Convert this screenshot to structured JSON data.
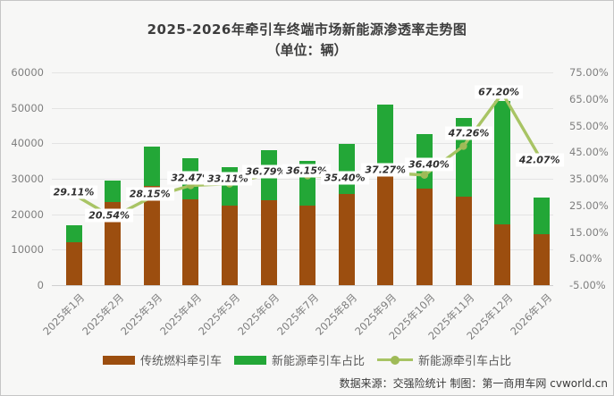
{
  "footer": {
    "text": "数据来源：交强险统计 制图：第一商用车网 cvworld.cn"
  },
  "colors": {
    "fuel_bar": "#9C4E0F",
    "ne_bar": "#23A737",
    "line": "#A8C464",
    "marker": "#9FBA57",
    "title_text": "#3D3D3D",
    "axis_text": "#7F7F7F",
    "label_text": "#2F2F2F",
    "gridline": "#E3E3E3",
    "legend_text": "#5B5B5B",
    "label_bg": "#FFFFFF"
  },
  "legend": {
    "items": [
      {
        "swatch": "bar-fuel",
        "label": "传统燃料牵引车"
      },
      {
        "swatch": "bar-ne",
        "label": "新能源牵引车占比"
      },
      {
        "swatch": "line",
        "label": "新能源牵引车占比"
      }
    ]
  },
  "chart_data": {
    "type": "combo: stacked bar + line",
    "title": "2025-2026年牵引车终端市场新能源渗透率走势图",
    "subtitle": "（单位：辆）",
    "categories": [
      "2025年1月",
      "2025年2月",
      "2025年3月",
      "2025年4月",
      "2025年5月",
      "2025年6月",
      "2025年7月",
      "2025年8月",
      "2025年9月",
      "2025年10月",
      "2025年11月",
      "2025年12月",
      "2026年1月"
    ],
    "series": [
      {
        "name": "传统燃料牵引车",
        "type": "bar",
        "stack": "total",
        "color": "#9C4E0F",
        "values": [
          12050,
          23440,
          28020,
          24110,
          22340,
          24020,
          22410,
          25710,
          31870,
          27160,
          24890,
          17020,
          14250
        ]
      },
      {
        "name": "新能源牵引车占比",
        "type": "bar",
        "stack": "total",
        "color": "#23A737",
        "values": [
          4950,
          6060,
          10980,
          11590,
          11060,
          13980,
          12690,
          14090,
          18930,
          15540,
          22310,
          34880,
          10350
        ]
      },
      {
        "name": "新能源牵引车占比",
        "type": "line",
        "axis": "right",
        "color": "#A8C464",
        "values": [
          29.11,
          20.54,
          28.15,
          32.47,
          33.11,
          36.79,
          36.15,
          35.4,
          37.27,
          36.4,
          47.26,
          67.2,
          42.07
        ],
        "labels": [
          "29.11%",
          "20.54%",
          "28.15%",
          "32.47%",
          "33.11%",
          "36.79%",
          "36.15%",
          "35.40%",
          "37.27%",
          "36.40%",
          "47.26%",
          "67.20%",
          "42.07%"
        ]
      }
    ],
    "left_axis": {
      "min": 0,
      "max": 60000,
      "tick_step": 10000,
      "ticks": [
        "0",
        "10000",
        "20000",
        "30000",
        "40000",
        "50000",
        "60000"
      ]
    },
    "right_axis": {
      "min": -5,
      "max": 75,
      "tick_step": 10,
      "ticks": [
        "-5.00%",
        "5.00%",
        "15.00%",
        "25.00%",
        "35.00%",
        "45.00%",
        "55.00%",
        "65.00%",
        "75.00%"
      ]
    },
    "grid": true,
    "legend_position": "bottom"
  }
}
